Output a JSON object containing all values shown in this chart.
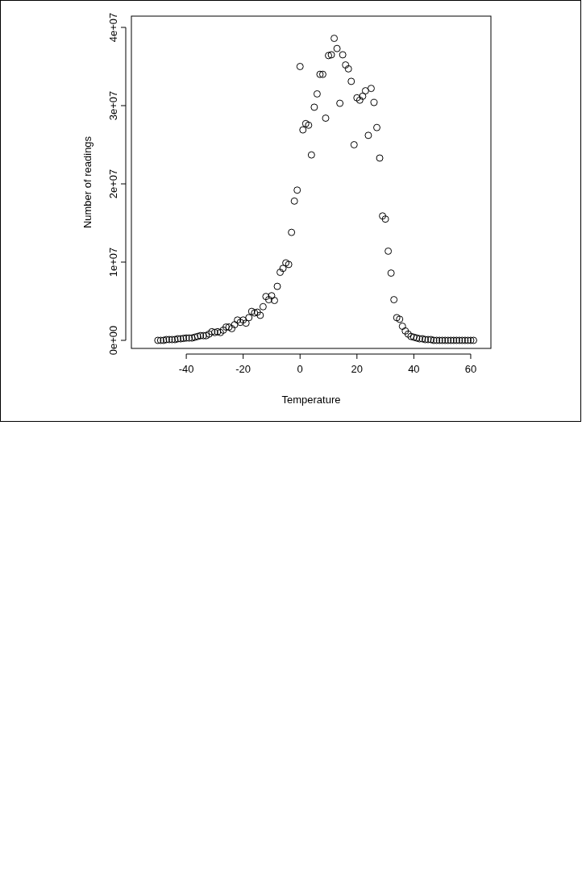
{
  "chart_data": {
    "type": "scatter",
    "xlabel": "Temperature",
    "ylabel": "Number of readings",
    "marker": "circle",
    "xlim": [
      -59.3,
      67.1
    ],
    "ylim": [
      -1030000,
      41440000
    ],
    "xticks": [
      -40,
      -20,
      0,
      20,
      40,
      60
    ],
    "yticks": [
      {
        "value": 0,
        "label": "0e+00"
      },
      {
        "value": 10000000,
        "label": "1e+07"
      },
      {
        "value": 20000000,
        "label": "2e+07"
      },
      {
        "value": 30000000,
        "label": "3e+07"
      },
      {
        "value": 40000000,
        "label": "4e+07"
      }
    ],
    "series": [
      {
        "color": "#000000",
        "x": [
          -50,
          -49,
          -48,
          -47,
          -46,
          -45,
          -44,
          -43,
          -42,
          -41,
          -40,
          -39,
          -38,
          -37,
          -36,
          -35,
          -34,
          -33,
          -32,
          -31,
          -30,
          -29,
          -28,
          -27,
          -26,
          -25,
          -24,
          -23,
          -22,
          -21,
          -20,
          -19,
          -18,
          -17,
          -16,
          -15,
          -14,
          -13,
          -12,
          -11,
          -10,
          -9,
          -8,
          -7,
          -6,
          -5,
          -4,
          -3,
          -2,
          -1,
          0,
          1,
          2,
          3,
          4,
          5,
          6,
          7,
          8,
          9,
          10,
          11,
          12,
          13,
          14,
          15,
          16,
          17,
          18,
          19,
          20,
          21,
          22,
          23,
          24,
          25,
          26,
          27,
          28,
          29,
          30,
          31,
          32,
          33,
          34,
          35,
          36,
          37,
          38,
          39,
          40,
          41,
          42,
          43,
          44,
          45,
          46,
          47,
          48,
          49,
          50,
          51,
          52,
          53,
          54,
          55,
          56,
          57,
          58,
          59,
          60,
          61
        ],
        "values": [
          0,
          0,
          0,
          100000,
          100000,
          100000,
          100000,
          200000,
          200000,
          250000,
          300000,
          300000,
          300000,
          400000,
          500000,
          600000,
          600000,
          600000,
          800000,
          1100000,
          1000000,
          1100000,
          1000000,
          1300000,
          1700000,
          1700000,
          1500000,
          2000000,
          2600000,
          2300000,
          2600000,
          2200000,
          2900000,
          3700000,
          3500000,
          3600000,
          3200000,
          4300000,
          5600000,
          5200000,
          5700000,
          5100000,
          6900000,
          8700000,
          9200000,
          9900000,
          9700000,
          13800000,
          17800000,
          19200000,
          35000000,
          26900000,
          27700000,
          27500000,
          23700000,
          29800000,
          31500000,
          34000000,
          34000000,
          28400000,
          36400000,
          36500000,
          38600000,
          37300000,
          30300000,
          36500000,
          35200000,
          34700000,
          33100000,
          25000000,
          31000000,
          30700000,
          31200000,
          31900000,
          26200000,
          32200000,
          30400000,
          27200000,
          23300000,
          15900000,
          15500000,
          11400000,
          8600000,
          5200000,
          2900000,
          2700000,
          1800000,
          1200000,
          800000,
          500000,
          400000,
          300000,
          200000,
          200000,
          100000,
          100000,
          100000,
          0,
          0,
          0,
          0,
          0,
          0,
          0,
          0,
          0,
          0,
          0,
          0,
          0,
          0,
          0
        ]
      }
    ]
  }
}
